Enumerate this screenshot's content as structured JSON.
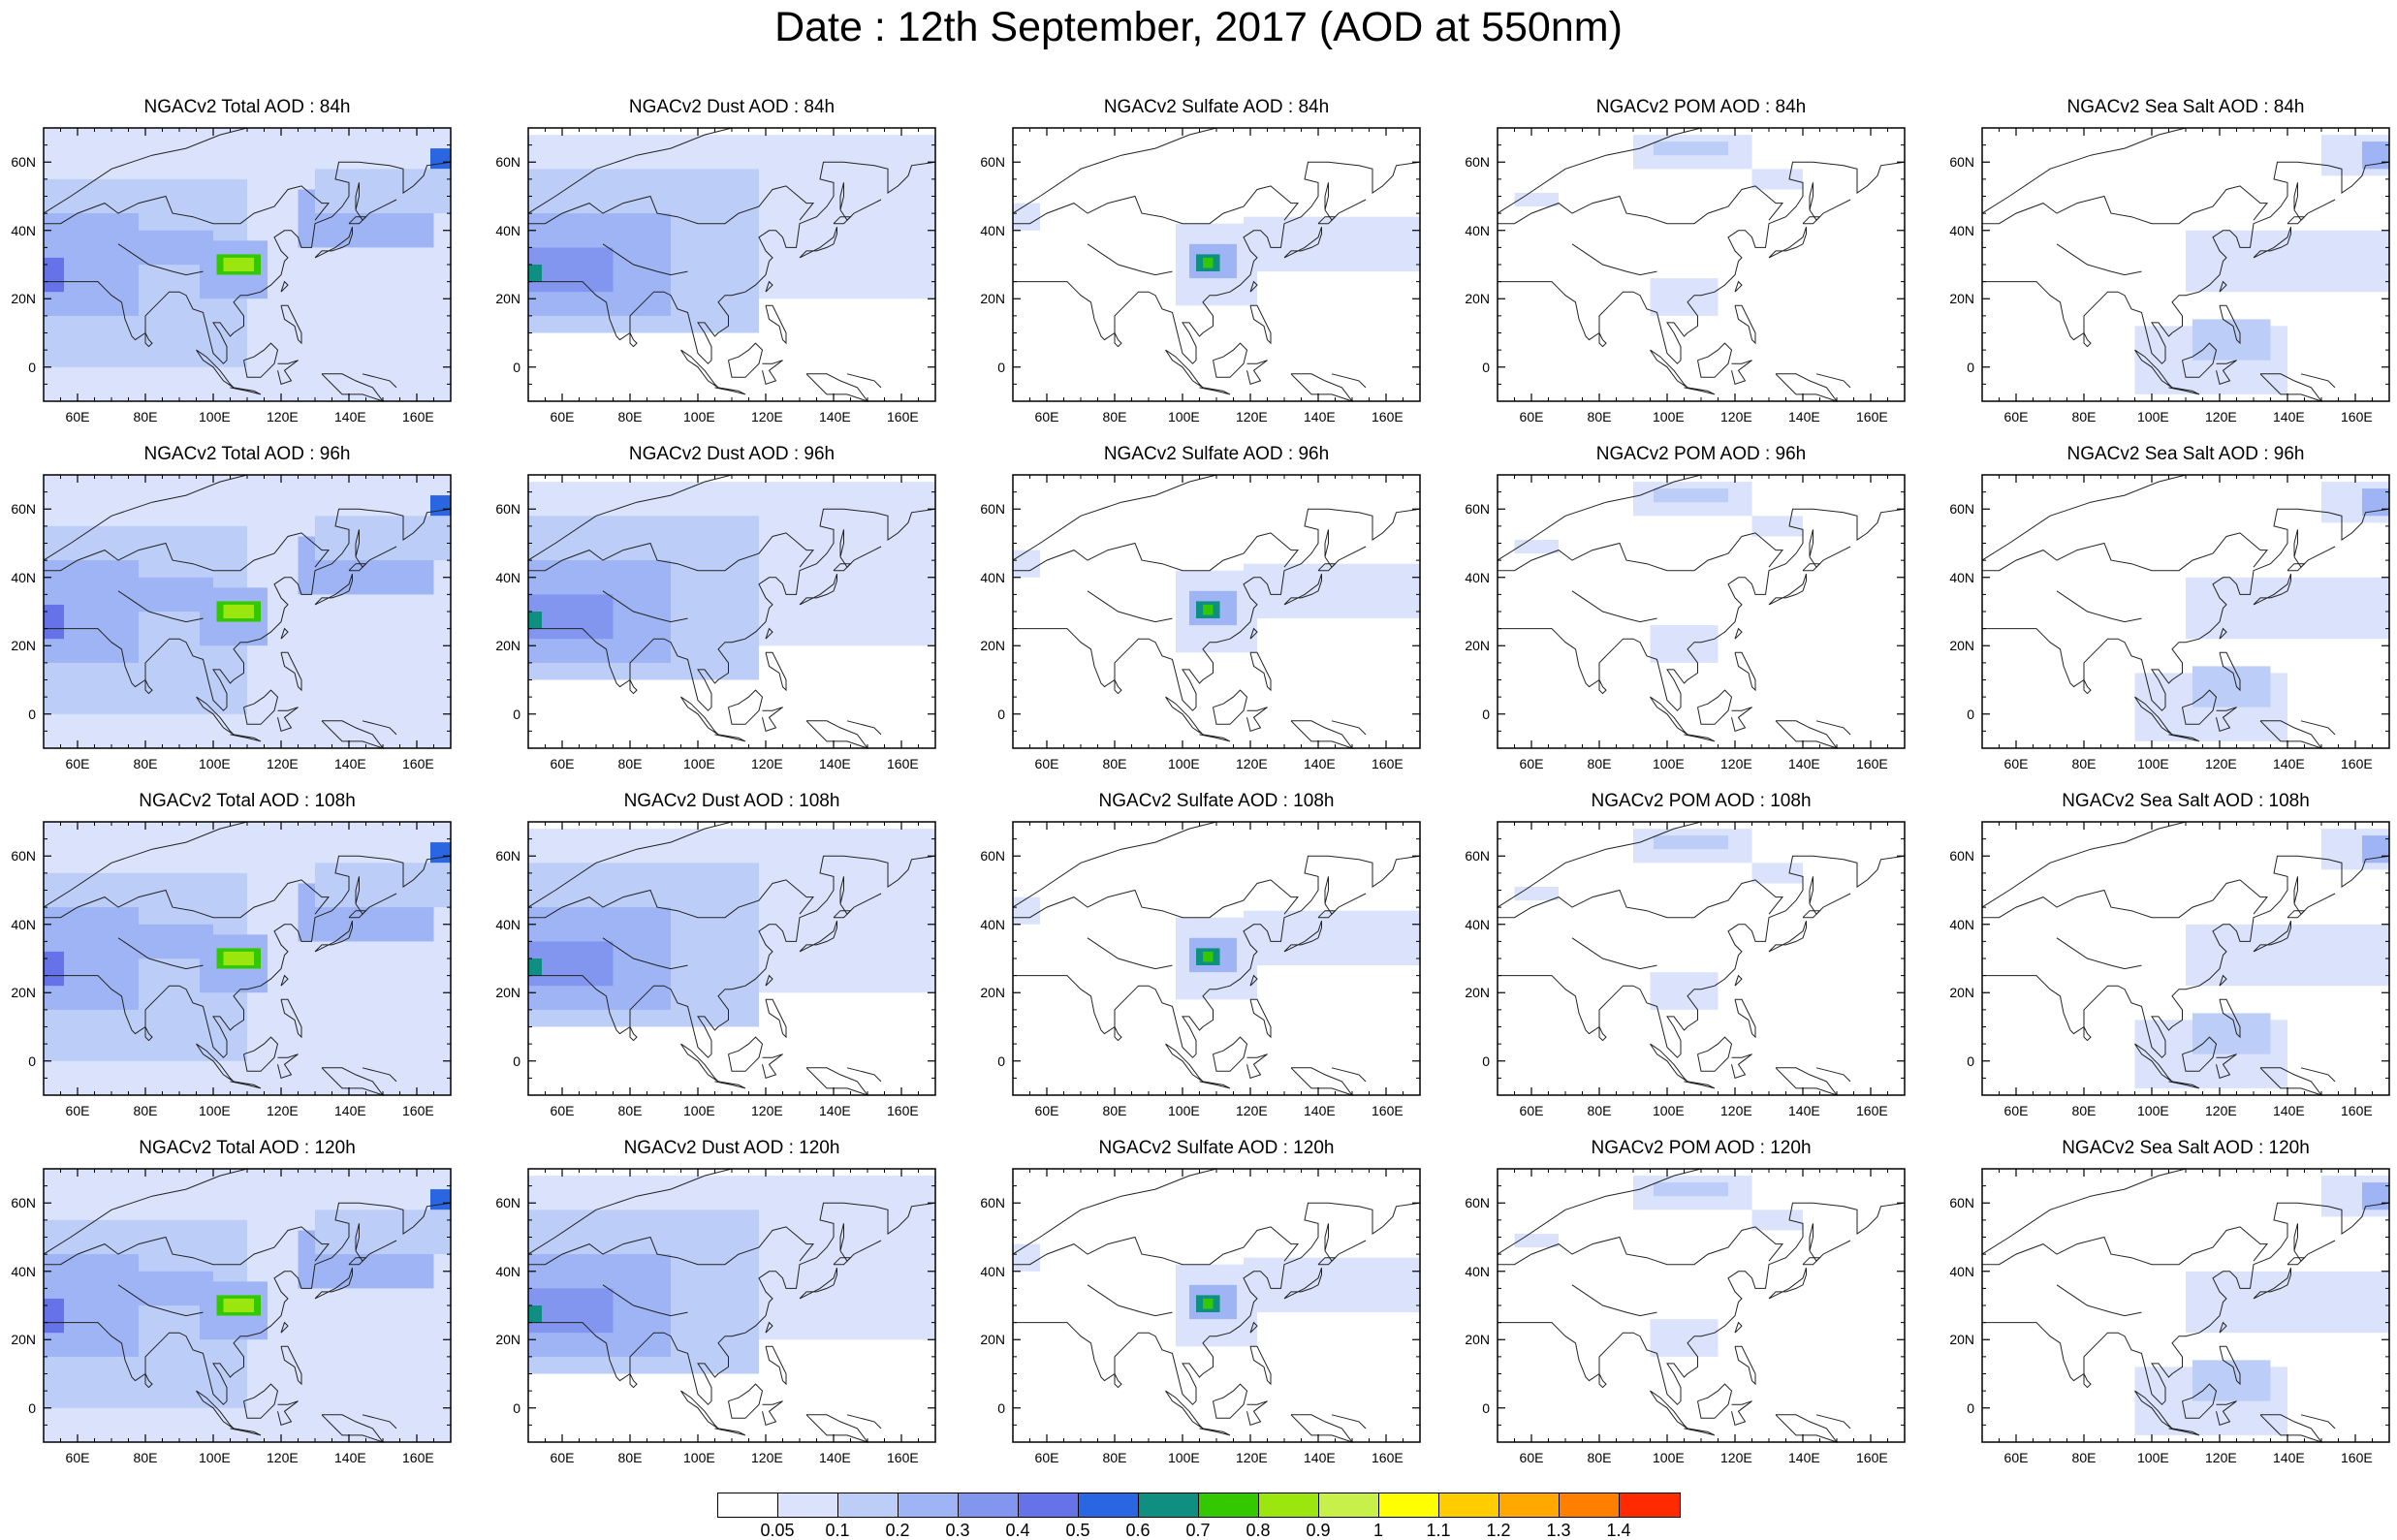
{
  "title": "Date : 12th September, 2017 (AOD at 550nm)",
  "x_ticks": [
    "60E",
    "80E",
    "100E",
    "120E",
    "140E",
    "160E"
  ],
  "y_ticks": [
    "60N",
    "40N",
    "20N",
    "0"
  ],
  "x_range": [
    50,
    170
  ],
  "y_range": [
    -10,
    70
  ],
  "colorbar": {
    "labels": [
      "0.05",
      "0.1",
      "0.2",
      "0.3",
      "0.4",
      "0.5",
      "0.6",
      "0.7",
      "0.8",
      "0.9",
      "1",
      "1.1",
      "1.2",
      "1.3",
      "1.4"
    ],
    "colors": [
      "#ffffff",
      "#dae3fb",
      "#bccdf7",
      "#9fb4f4",
      "#8296f0",
      "#6672e8",
      "#2a66e2",
      "#0f8f82",
      "#33c800",
      "#9ae60e",
      "#c8f04a",
      "#ffff00",
      "#ffcc00",
      "#ffa800",
      "#ff7f00",
      "#ff2a00"
    ]
  },
  "panels": [
    [
      {
        "title": "NGACv2 Total AOD : 84h",
        "species": "total"
      },
      {
        "title": "NGACv2 Dust AOD : 84h",
        "species": "dust"
      },
      {
        "title": "NGACv2 Sulfate AOD : 84h",
        "species": "sulfate"
      },
      {
        "title": "NGACv2 POM AOD : 84h",
        "species": "pom"
      },
      {
        "title": "NGACv2 Sea Salt AOD : 84h",
        "species": "seasalt"
      }
    ],
    [
      {
        "title": "NGACv2 Total AOD : 96h",
        "species": "total"
      },
      {
        "title": "NGACv2 Dust AOD : 96h",
        "species": "dust"
      },
      {
        "title": "NGACv2 Sulfate AOD : 96h",
        "species": "sulfate"
      },
      {
        "title": "NGACv2 POM AOD : 96h",
        "species": "pom"
      },
      {
        "title": "NGACv2 Sea Salt AOD : 96h",
        "species": "seasalt"
      }
    ],
    [
      {
        "title": "NGACv2 Total AOD : 108h",
        "species": "total"
      },
      {
        "title": "NGACv2 Dust AOD : 108h",
        "species": "dust"
      },
      {
        "title": "NGACv2 Sulfate AOD : 108h",
        "species": "sulfate"
      },
      {
        "title": "NGACv2 POM AOD : 108h",
        "species": "pom"
      },
      {
        "title": "NGACv2 Sea Salt AOD : 108h",
        "species": "seasalt"
      }
    ],
    [
      {
        "title": "NGACv2 Total AOD : 120h",
        "species": "total"
      },
      {
        "title": "NGACv2 Dust AOD : 120h",
        "species": "dust"
      },
      {
        "title": "NGACv2 Sulfate AOD : 120h",
        "species": "sulfate"
      },
      {
        "title": "NGACv2 POM AOD : 120h",
        "species": "pom"
      },
      {
        "title": "NGACv2 Sea Salt  AOD : 120h",
        "species": "seasalt"
      }
    ]
  ]
}
